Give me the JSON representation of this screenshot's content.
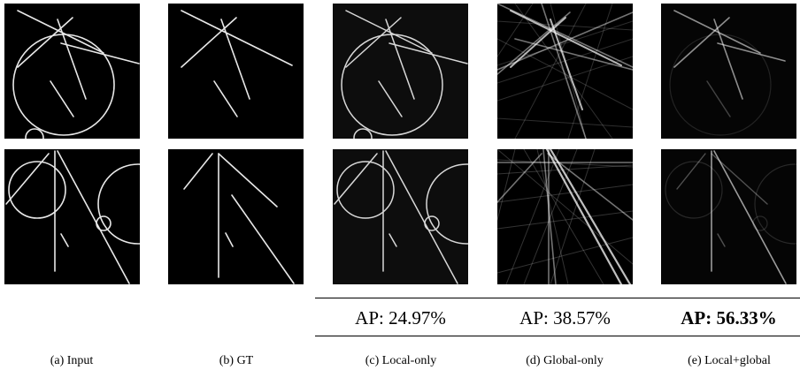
{
  "columns": [
    {
      "caption": "(a) Input"
    },
    {
      "caption": "(b) GT"
    },
    {
      "caption": "(c) Local-only"
    },
    {
      "caption": "(d) Global-only"
    },
    {
      "caption": "(e) Local+global"
    }
  ],
  "ap_scores": {
    "local_only": "AP: 24.97%",
    "global_only": "AP: 38.57%",
    "local_global": "AP: 56.33%"
  }
}
